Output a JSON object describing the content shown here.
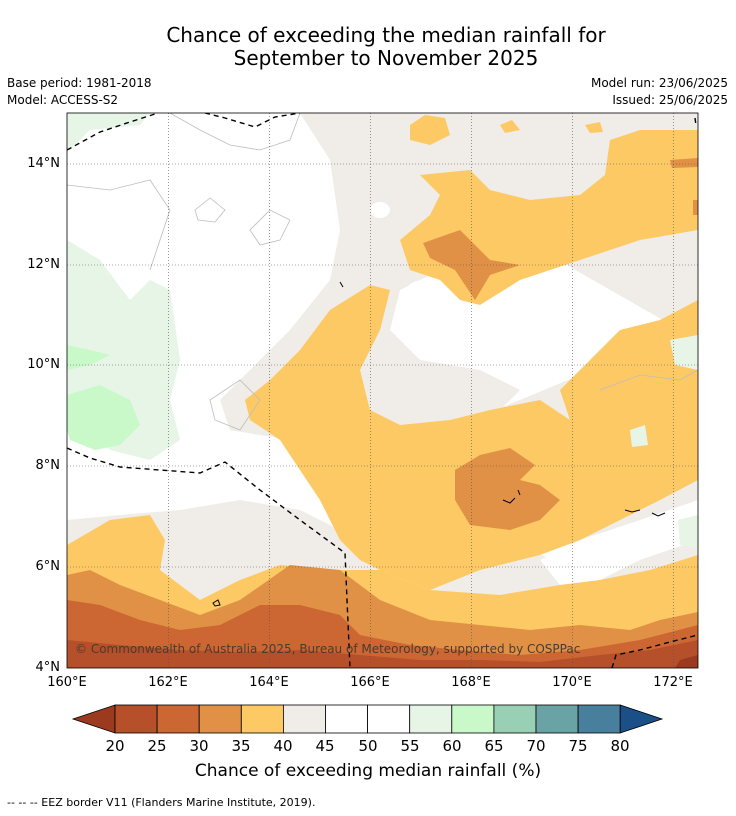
{
  "title": {
    "line1": "Chance of exceeding the median rainfall for",
    "line2": "September to November 2025"
  },
  "meta": {
    "base_period": "Base period: 1981-2018",
    "model": "Model: ACCESS-S2",
    "model_run": "Model run: 23/06/2025",
    "issued": "Issued: 25/06/2025"
  },
  "map": {
    "lon_range": [
      160,
      172.5
    ],
    "lat_range": [
      4,
      15
    ],
    "x_ticks": [
      "160°E",
      "162°E",
      "164°E",
      "166°E",
      "168°E",
      "170°E",
      "172°E"
    ],
    "y_ticks": [
      "14°N",
      "12°N",
      "10°N",
      "8°N",
      "6°N",
      "4°N"
    ],
    "copyright": "© Commonwealth of Australia 2025, Bureau of Meteorology, supported by COSPPac"
  },
  "colorbar": {
    "title": "Chance of exceeding median rainfall (%)",
    "labels": [
      "20",
      "25",
      "30",
      "35",
      "40",
      "45",
      "50",
      "55",
      "60",
      "65",
      "70",
      "75",
      "80"
    ],
    "colors": {
      "lt20": "#9b3a1f",
      "20-25": "#b5502a",
      "25-30": "#cc6632",
      "30-35": "#e09145",
      "35-40": "#fdc964",
      "40-45": "#f0ece7",
      "45-50": "#ffffff",
      "50-55": "#ffffff",
      "55-60": "#e6f5e6",
      "60-65": "#c9f9c9",
      "65-70": "#99cfb4",
      "70-75": "#6aa3a5",
      "75-80": "#477f9c",
      "gt80": "#1b4f87"
    }
  },
  "footer": "--  --  -- EEZ border V11 (Flanders Marine Institute, 2019)."
}
